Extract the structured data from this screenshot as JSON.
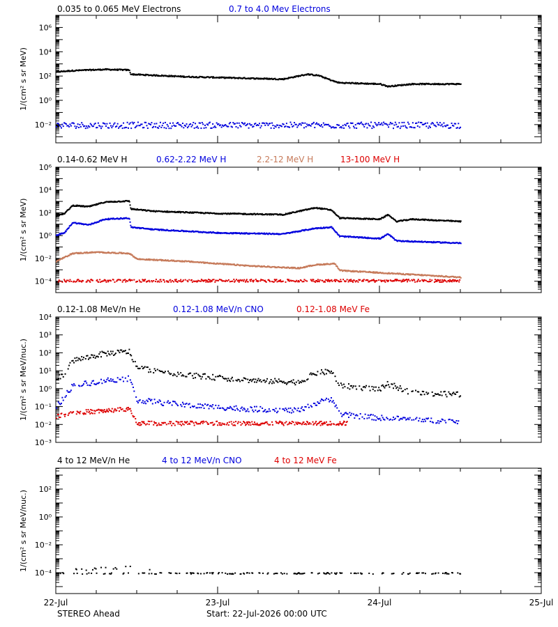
{
  "footer": {
    "spacecraft": "STEREO Ahead",
    "start": "Start: 22-Jul-2026 00:00 UTC"
  },
  "colors": {
    "black": "#000000",
    "blue": "#0000dd",
    "brown": "#c67a5a",
    "red": "#dd0000"
  },
  "chart_data": [
    {
      "type": "scatter",
      "ylabel": "1/(cm² s sr MeV)",
      "y_scale": "log",
      "ylim_exp": [
        -3.5,
        7
      ],
      "y_ticks": [
        {
          "exp": -2,
          "label": "10⁻²"
        },
        {
          "exp": 0,
          "label": "10⁰"
        },
        {
          "exp": 2,
          "label": "10²"
        },
        {
          "exp": 4,
          "label": "10⁴"
        },
        {
          "exp": 6,
          "label": "10⁶"
        }
      ],
      "x_unit": "days since 22-Jul 00:00",
      "xlim": [
        0,
        3
      ],
      "x_ticks": [
        {
          "x": 0,
          "label": "22-Jul"
        },
        {
          "x": 1,
          "label": "23-Jul"
        },
        {
          "x": 2,
          "label": "24-Jul"
        },
        {
          "x": 3,
          "label": "25-Jul"
        }
      ],
      "series": [
        {
          "name": "0.035 to 0.065 MeV Electrons",
          "color": "#000000",
          "style": "dense",
          "points": [
            [
              0,
              2.4
            ],
            [
              0.1,
              2.5
            ],
            [
              0.3,
              2.6
            ],
            [
              0.45,
              2.55
            ],
            [
              0.46,
              2.2
            ],
            [
              0.8,
              2.0
            ],
            [
              1.4,
              1.8
            ],
            [
              1.55,
              2.2
            ],
            [
              1.62,
              2.1
            ],
            [
              1.72,
              1.6
            ],
            [
              1.75,
              1.5
            ],
            [
              2.0,
              1.4
            ],
            [
              2.05,
              1.2
            ],
            [
              2.2,
              1.4
            ],
            [
              2.5,
              1.4
            ]
          ]
        },
        {
          "name": "0.7 to 4.0 Mev Electrons",
          "color": "#0000dd",
          "style": "noisy",
          "points": [
            [
              0,
              -2.0
            ],
            [
              2.5,
              -2.0
            ]
          ]
        }
      ]
    },
    {
      "type": "scatter",
      "ylabel": "1/(cm² s sr MeV)",
      "y_scale": "log",
      "ylim_exp": [
        -5,
        6
      ],
      "y_ticks": [
        {
          "exp": -4,
          "label": "10⁻⁴"
        },
        {
          "exp": -2,
          "label": "10⁻²"
        },
        {
          "exp": 0,
          "label": "10⁰"
        },
        {
          "exp": 2,
          "label": "10²"
        },
        {
          "exp": 4,
          "label": "10⁴"
        },
        {
          "exp": 6,
          "label": "10⁶"
        }
      ],
      "x_unit": "days since 22-Jul 00:00",
      "xlim": [
        0,
        3
      ],
      "x_ticks": [
        {
          "x": 0,
          "label": "22-Jul"
        },
        {
          "x": 1,
          "label": "23-Jul"
        },
        {
          "x": 2,
          "label": "24-Jul"
        },
        {
          "x": 3,
          "label": "25-Jul"
        }
      ],
      "series": [
        {
          "name": "0.14-0.62 MeV H",
          "color": "#000000",
          "style": "dense",
          "points": [
            [
              0,
              1.8
            ],
            [
              0.05,
              2.0
            ],
            [
              0.1,
              2.7
            ],
            [
              0.2,
              2.6
            ],
            [
              0.3,
              3.0
            ],
            [
              0.45,
              3.1
            ],
            [
              0.46,
              2.4
            ],
            [
              0.6,
              2.2
            ],
            [
              1.0,
              2.0
            ],
            [
              1.4,
              1.9
            ],
            [
              1.6,
              2.5
            ],
            [
              1.7,
              2.3
            ],
            [
              1.75,
              1.6
            ],
            [
              2.0,
              1.5
            ],
            [
              2.05,
              1.9
            ],
            [
              2.1,
              1.3
            ],
            [
              2.2,
              1.5
            ],
            [
              2.5,
              1.3
            ]
          ]
        },
        {
          "name": "0.62-2.22 MeV H",
          "color": "#0000dd",
          "style": "dense",
          "points": [
            [
              0,
              0.1
            ],
            [
              0.05,
              0.3
            ],
            [
              0.1,
              1.2
            ],
            [
              0.2,
              1.0
            ],
            [
              0.3,
              1.5
            ],
            [
              0.45,
              1.6
            ],
            [
              0.46,
              0.8
            ],
            [
              0.6,
              0.6
            ],
            [
              1.0,
              0.3
            ],
            [
              1.4,
              0.2
            ],
            [
              1.6,
              0.7
            ],
            [
              1.7,
              0.8
            ],
            [
              1.75,
              0.0
            ],
            [
              2.0,
              -0.2
            ],
            [
              2.05,
              0.2
            ],
            [
              2.1,
              -0.4
            ],
            [
              2.5,
              -0.6
            ]
          ]
        },
        {
          "name": "2.2-12 MeV H",
          "color": "#c67a5a",
          "style": "dense",
          "points": [
            [
              0,
              -2.2
            ],
            [
              0.1,
              -1.5
            ],
            [
              0.25,
              -1.4
            ],
            [
              0.45,
              -1.5
            ],
            [
              0.5,
              -2.0
            ],
            [
              0.8,
              -2.2
            ],
            [
              1.2,
              -2.6
            ],
            [
              1.5,
              -2.8
            ],
            [
              1.6,
              -2.5
            ],
            [
              1.72,
              -2.4
            ],
            [
              1.75,
              -3.0
            ],
            [
              2.0,
              -3.2
            ],
            [
              2.5,
              -3.6
            ]
          ]
        },
        {
          "name": "13-100 MeV H",
          "color": "#dd0000",
          "style": "floor",
          "points": [
            [
              0,
              -3.9
            ],
            [
              2.5,
              -3.9
            ]
          ]
        }
      ]
    },
    {
      "type": "scatter",
      "ylabel": "1/(cm² s sr MeV/nuc.)",
      "y_scale": "log",
      "ylim_exp": [
        -3,
        4
      ],
      "y_ticks": [
        {
          "exp": -3,
          "label": "10⁻³"
        },
        {
          "exp": -2,
          "label": "10⁻²"
        },
        {
          "exp": -1,
          "label": "10⁻¹"
        },
        {
          "exp": 0,
          "label": "10⁰"
        },
        {
          "exp": 1,
          "label": "10¹"
        },
        {
          "exp": 2,
          "label": "10²"
        },
        {
          "exp": 3,
          "label": "10³"
        },
        {
          "exp": 4,
          "label": "10⁴"
        }
      ],
      "x_unit": "days since 22-Jul 00:00",
      "xlim": [
        0,
        3
      ],
      "x_ticks": [
        {
          "x": 0,
          "label": "22-Jul"
        },
        {
          "x": 1,
          "label": "23-Jul"
        },
        {
          "x": 2,
          "label": "24-Jul"
        },
        {
          "x": 3,
          "label": "25-Jul"
        }
      ],
      "series": [
        {
          "name": "0.12-1.08 MeV/n He",
          "color": "#000000",
          "style": "sparse",
          "points": [
            [
              0,
              0.6
            ],
            [
              0.05,
              0.8
            ],
            [
              0.1,
              1.6
            ],
            [
              0.2,
              1.8
            ],
            [
              0.3,
              2.0
            ],
            [
              0.45,
              2.1
            ],
            [
              0.5,
              1.2
            ],
            [
              0.8,
              0.8
            ],
            [
              1.2,
              0.5
            ],
            [
              1.5,
              0.4
            ],
            [
              1.6,
              0.9
            ],
            [
              1.7,
              1.0
            ],
            [
              1.75,
              0.2
            ],
            [
              2.0,
              0.0
            ],
            [
              2.05,
              0.3
            ],
            [
              2.2,
              -0.2
            ],
            [
              2.5,
              -0.3
            ]
          ]
        },
        {
          "name": "0.12-1.08 MeV/n CNO",
          "color": "#0000dd",
          "style": "sparse",
          "points": [
            [
              0,
              -1.0
            ],
            [
              0.1,
              0.2
            ],
            [
              0.3,
              0.5
            ],
            [
              0.45,
              0.6
            ],
            [
              0.5,
              -0.6
            ],
            [
              0.8,
              -0.9
            ],
            [
              1.2,
              -1.1
            ],
            [
              1.5,
              -1.2
            ],
            [
              1.6,
              -0.8
            ],
            [
              1.7,
              -0.5
            ],
            [
              1.75,
              -1.4
            ],
            [
              2.0,
              -1.6
            ],
            [
              2.5,
              -1.8
            ]
          ]
        },
        {
          "name": "0.12-1.08 MeV Fe",
          "color": "#dd0000",
          "style": "fe",
          "points": [
            [
              0,
              -1.5
            ],
            [
              0.1,
              -1.3
            ],
            [
              0.3,
              -1.2
            ],
            [
              0.45,
              -1.1
            ],
            [
              0.5,
              -1.9
            ],
            [
              1.8,
              -1.9
            ]
          ]
        }
      ]
    },
    {
      "type": "scatter",
      "ylabel": "1/(cm² s sr MeV/nuc.)",
      "y_scale": "log",
      "ylim_exp": [
        -5.5,
        3.5
      ],
      "y_ticks": [
        {
          "exp": -4,
          "label": "10⁻⁴"
        },
        {
          "exp": -2,
          "label": "10⁻²"
        },
        {
          "exp": 0,
          "label": "10⁰"
        },
        {
          "exp": 2,
          "label": "10²"
        }
      ],
      "x_unit": "days since 22-Jul 00:00",
      "xlim": [
        0,
        3
      ],
      "x_ticks": [
        {
          "x": 0,
          "label": "22-Jul"
        },
        {
          "x": 1,
          "label": "23-Jul"
        },
        {
          "x": 2,
          "label": "24-Jul"
        },
        {
          "x": 3,
          "label": "25-Jul"
        }
      ],
      "series": [
        {
          "name": "4 to 12 MeV/n He",
          "color": "#000000",
          "style": "bottom",
          "points": [
            [
              0,
              -4.0
            ],
            [
              2.5,
              -4.0
            ]
          ]
        },
        {
          "name": "4 to 12 MeV/n CNO",
          "color": "#0000dd",
          "style": "none",
          "points": []
        },
        {
          "name": "4 to 12 MeV Fe",
          "color": "#dd0000",
          "style": "none",
          "points": []
        }
      ]
    }
  ]
}
